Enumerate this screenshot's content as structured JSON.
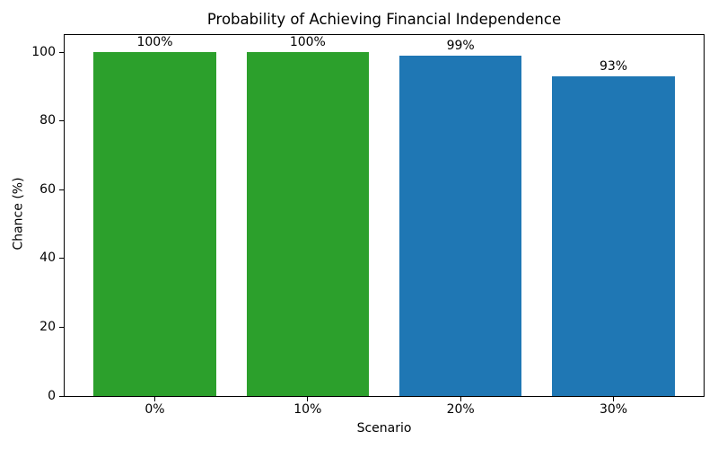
{
  "figure": {
    "background": "#ffffff",
    "text_color": "#000000",
    "spine_color": "#000000"
  },
  "chart_data": {
    "type": "bar",
    "title": "Probability of Achieving Financial Independence",
    "xlabel": "Scenario",
    "ylabel": "Chance (%)",
    "categories": [
      "0%",
      "10%",
      "20%",
      "30%"
    ],
    "values": [
      100,
      100,
      99,
      93
    ],
    "bar_labels": [
      "100%",
      "100%",
      "99%",
      "93%"
    ],
    "bar_colors": [
      "#2ca02c",
      "#2ca02c",
      "#1f77b4",
      "#1f77b4"
    ],
    "yticks": [
      0,
      20,
      40,
      60,
      80,
      100
    ],
    "ytick_labels": [
      "0",
      "20",
      "40",
      "60",
      "80",
      "100"
    ],
    "ylim": [
      0,
      105
    ],
    "xlim": [
      -0.59,
      3.59
    ],
    "bar_width": 0.8,
    "grid": false,
    "legend": "none"
  }
}
